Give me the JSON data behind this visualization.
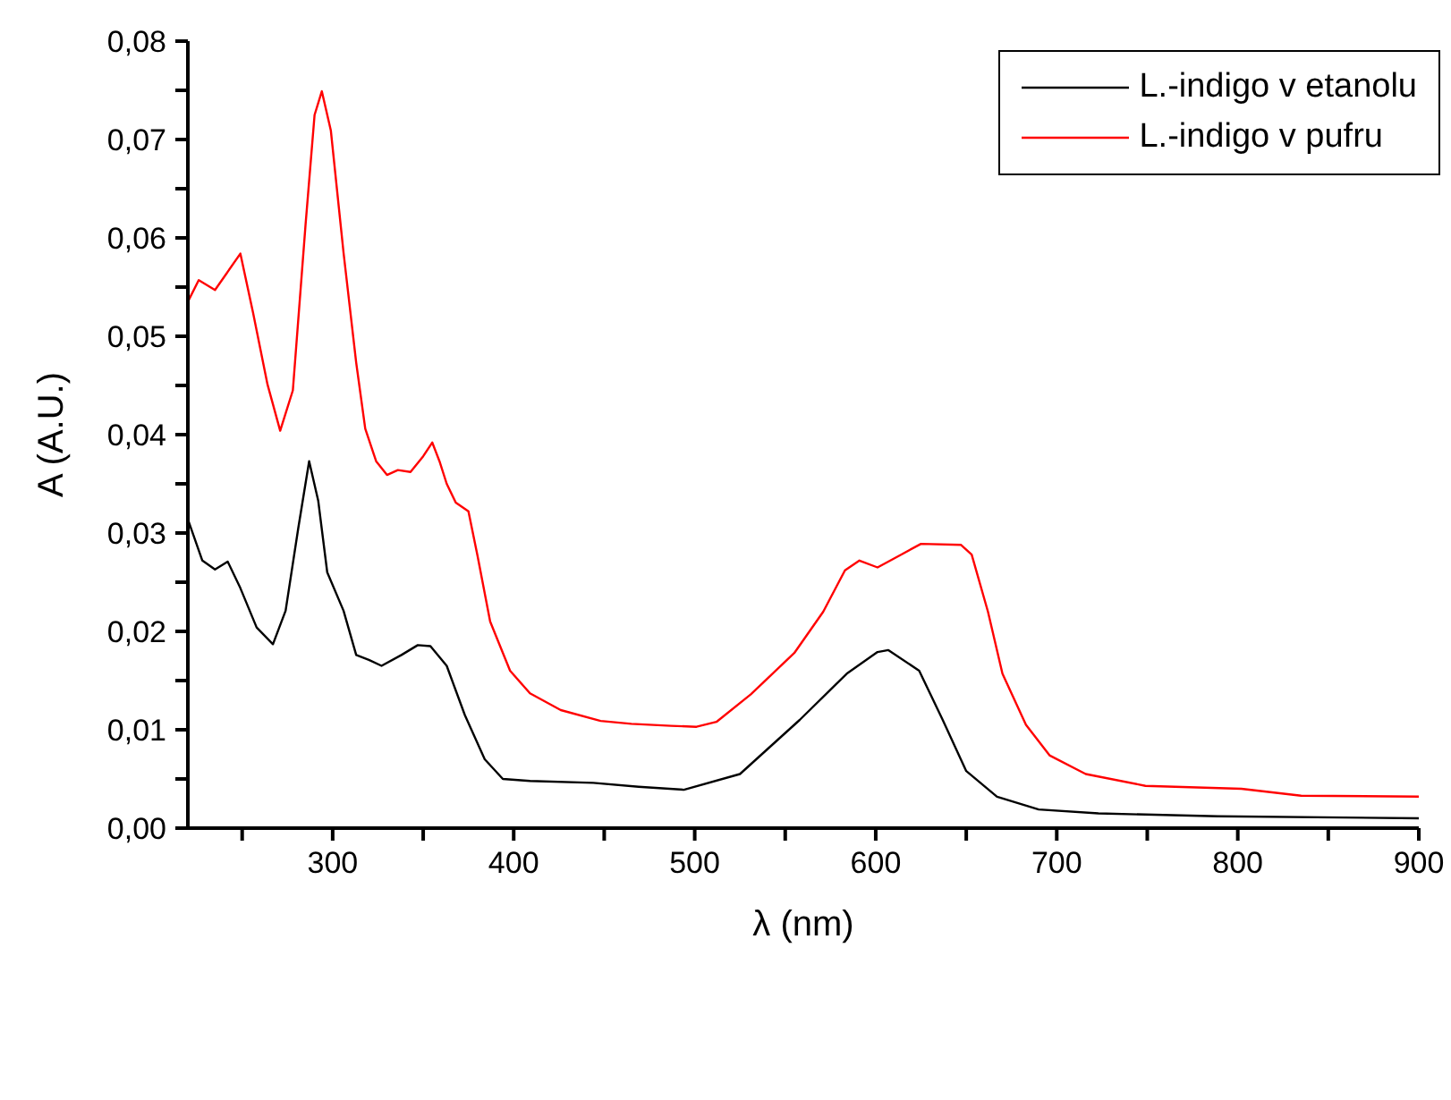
{
  "chart_data": {
    "type": "line",
    "xlabel": "λ (nm)",
    "ylabel": "A (A.U.)",
    "xlim": [
      220,
      900
    ],
    "ylim": [
      0,
      0.08
    ],
    "xticks": [
      {
        "value": 250,
        "label": null
      },
      {
        "value": 300,
        "label": "300"
      },
      {
        "value": 350,
        "label": null
      },
      {
        "value": 400,
        "label": "400"
      },
      {
        "value": 450,
        "label": null
      },
      {
        "value": 500,
        "label": "500"
      },
      {
        "value": 550,
        "label": null
      },
      {
        "value": 600,
        "label": "600"
      },
      {
        "value": 650,
        "label": null
      },
      {
        "value": 700,
        "label": "700"
      },
      {
        "value": 750,
        "label": null
      },
      {
        "value": 800,
        "label": "800"
      },
      {
        "value": 850,
        "label": null
      },
      {
        "value": 900,
        "label": "900"
      }
    ],
    "yticks": [
      {
        "value": 0,
        "label": "0,00"
      },
      {
        "value": 0.005,
        "label": null
      },
      {
        "value": 0.01,
        "label": "0,01"
      },
      {
        "value": 0.015,
        "label": null
      },
      {
        "value": 0.02,
        "label": "0,02"
      },
      {
        "value": 0.025,
        "label": null
      },
      {
        "value": 0.03,
        "label": "0,03"
      },
      {
        "value": 0.035,
        "label": null
      },
      {
        "value": 0.04,
        "label": "0,04"
      },
      {
        "value": 0.045,
        "label": null
      },
      {
        "value": 0.05,
        "label": "0,05"
      },
      {
        "value": 0.055,
        "label": null
      },
      {
        "value": 0.06,
        "label": "0,06"
      },
      {
        "value": 0.065,
        "label": null
      },
      {
        "value": 0.07,
        "label": "0,07"
      },
      {
        "value": 0.075,
        "label": null
      },
      {
        "value": 0.08,
        "label": "0,08"
      }
    ],
    "grid": false,
    "legend": "top right",
    "marker": "none",
    "line_style": "solid",
    "series": [
      {
        "name": "L.-indigo v etanolu",
        "color": "#000000",
        "x": [
          220,
          228,
          235,
          242,
          249,
          258,
          267,
          274,
          281,
          287,
          292,
          297,
          306,
          313,
          320,
          327,
          338,
          347,
          354,
          363,
          373,
          384,
          394,
          409,
          444,
          469,
          494,
          525,
          558,
          584,
          601,
          607,
          624,
          637,
          650,
          667,
          690,
          723,
          789,
          900
        ],
        "values": [
          0.0314,
          0.0272,
          0.0263,
          0.0271,
          0.0244,
          0.0204,
          0.0187,
          0.0221,
          0.0305,
          0.0373,
          0.0333,
          0.026,
          0.0221,
          0.0176,
          0.0171,
          0.0165,
          0.0176,
          0.0186,
          0.0185,
          0.0165,
          0.0115,
          0.007,
          0.005,
          0.0048,
          0.0046,
          0.0042,
          0.0039,
          0.0055,
          0.011,
          0.0157,
          0.0179,
          0.0181,
          0.016,
          0.011,
          0.0058,
          0.0032,
          0.0019,
          0.0015,
          0.0012,
          0.001
        ]
      },
      {
        "name": "L.-indigo v pufru",
        "color": "#ff0000",
        "x": [
          220,
          226,
          235,
          249,
          256,
          264,
          271,
          278,
          285,
          290,
          294,
          299,
          306,
          313,
          318,
          324,
          330,
          336,
          343,
          350,
          355,
          359,
          363,
          368,
          375,
          380,
          387,
          398,
          409,
          426,
          448,
          465,
          487,
          501,
          512,
          531,
          555,
          571,
          583,
          591,
          601,
          614,
          625,
          647,
          653,
          662,
          670,
          683,
          696,
          716,
          749,
          802,
          835,
          900
        ],
        "values": [
          0.0535,
          0.0557,
          0.0547,
          0.0584,
          0.0524,
          0.0451,
          0.0404,
          0.0445,
          0.0613,
          0.0725,
          0.0749,
          0.0709,
          0.0585,
          0.0473,
          0.0406,
          0.0373,
          0.0359,
          0.0364,
          0.0362,
          0.0378,
          0.0392,
          0.0373,
          0.035,
          0.0331,
          0.0322,
          0.0277,
          0.021,
          0.016,
          0.0137,
          0.012,
          0.0109,
          0.0106,
          0.0104,
          0.0103,
          0.0108,
          0.0136,
          0.0178,
          0.022,
          0.0262,
          0.0272,
          0.0265,
          0.0278,
          0.0289,
          0.0288,
          0.0278,
          0.022,
          0.0157,
          0.0105,
          0.0074,
          0.0055,
          0.0043,
          0.004,
          0.0033,
          0.0032
        ]
      }
    ]
  }
}
